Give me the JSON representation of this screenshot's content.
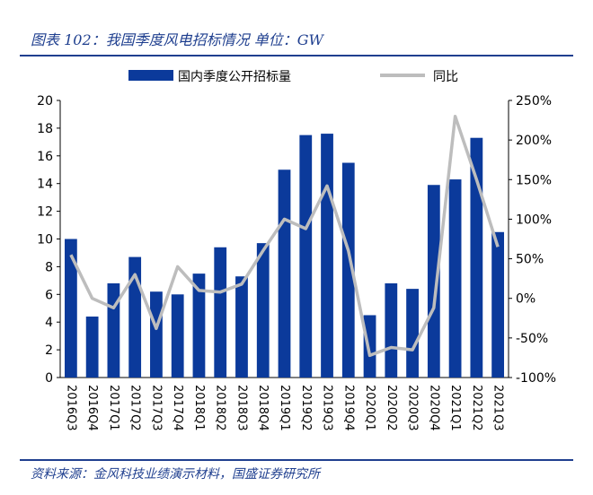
{
  "figure_title": "图表 102：我国季度风电招标情况 单位：GW",
  "source": "资料来源：金风科技业绩演示材料，国盛证券研究所",
  "colors": {
    "bar": "#0b3a9b",
    "line": "#bdbdbd",
    "title": "#1f3f8f"
  },
  "chart_data": {
    "type": "bar",
    "categories": [
      "2016Q3",
      "2016Q4",
      "2017Q1",
      "2017Q2",
      "2017Q3",
      "2017Q4",
      "2018Q1",
      "2018Q2",
      "2018Q3",
      "2018Q4",
      "2019Q1",
      "2019Q2",
      "2019Q3",
      "2019Q4",
      "2020Q1",
      "2020Q2",
      "2020Q3",
      "2020Q4",
      "2021Q1",
      "2021Q2",
      "2021Q3"
    ],
    "series": [
      {
        "name": "国内季度公开招标量",
        "type": "bar",
        "axis": "left",
        "values": [
          10.0,
          4.4,
          6.8,
          8.7,
          6.2,
          6.0,
          7.5,
          9.4,
          7.3,
          9.7,
          15.0,
          17.5,
          17.6,
          15.5,
          4.5,
          6.8,
          6.4,
          13.9,
          14.3,
          17.3,
          10.5
        ]
      },
      {
        "name": "同比",
        "type": "line",
        "axis": "right",
        "unit": "%",
        "values": [
          55,
          0,
          -12,
          30,
          -38,
          40,
          10,
          8,
          18,
          60,
          100,
          88,
          142,
          60,
          -72,
          -62,
          -65,
          -12,
          230,
          150,
          65
        ]
      }
    ],
    "y_left": {
      "ylim": [
        0,
        20
      ],
      "ticks": [
        "0",
        "2",
        "4",
        "6",
        "8",
        "10",
        "12",
        "14",
        "16",
        "18",
        "20"
      ]
    },
    "y_right": {
      "ylim": [
        -100,
        250
      ],
      "ticks": [
        "-100%",
        "-50%",
        "0%",
        "50%",
        "100%",
        "150%",
        "200%",
        "250%"
      ]
    },
    "legend_position": "top-center",
    "grid": false
  }
}
